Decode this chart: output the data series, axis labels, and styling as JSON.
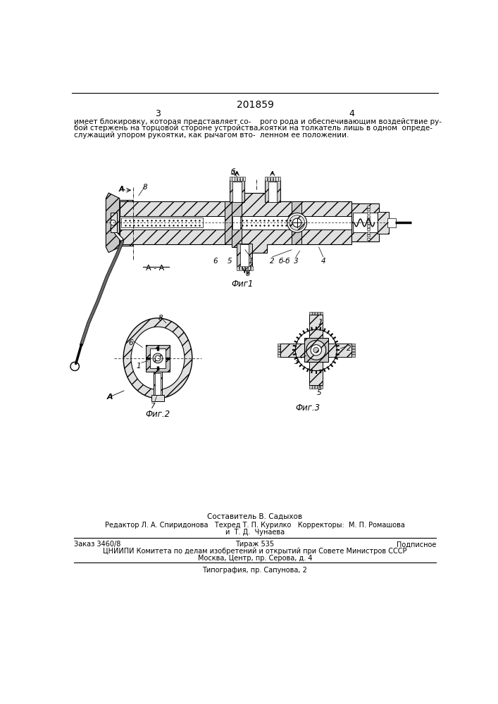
{
  "patent_number": "201859",
  "page_left": "3",
  "page_right": "4",
  "top_text_left": [
    "имеет блокировку, которая представляет со-",
    "бой стержень на торцовой стороне устройства,",
    "служащий упором рукоятки, как рычагом вто-"
  ],
  "top_text_right": [
    "рого рода и обеспечивающим воздействие ру-",
    "коятки на толкатель лишь в одном  опреде-",
    "ленном ее положении."
  ],
  "fig1_label": "Фиг1",
  "fig2_label": "Фиг.2",
  "fig3_label": "Фиг.3",
  "bottom_sestavitel": "Составитель В. Садыхов",
  "bottom_editor": "Редактор Л. А. Спиридонова   Техред Т. П. Курилко   Корректоры:  М. П. Ромашова",
  "bottom_editor2": "и  Т. Д.  Чунаева",
  "bottom_zakaz": "Заказ 3460/8",
  "bottom_tirazh": "Тираж 535",
  "bottom_podpisnoe": "Подписное",
  "bottom_cniipи": "ЦНИИПИ Комитета по делам изобретений и открытий при Совете Министров СССР",
  "bottom_moskva": "Москва, Центр, пр. Серова, д. 4",
  "bottom_tipografia": "Типография, пр. Сапунова, 2",
  "bg_color": "#ffffff",
  "hatch_color": "#000000",
  "hatch_bg": "#e8e8e8"
}
